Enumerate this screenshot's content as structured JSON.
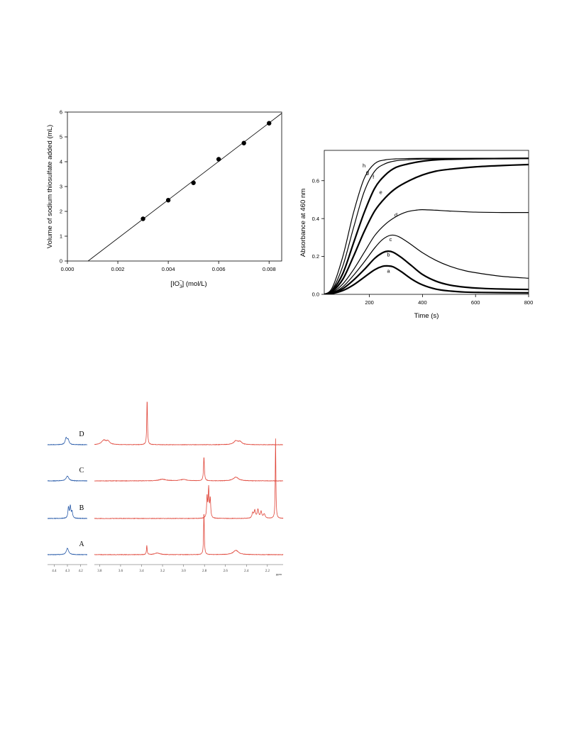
{
  "chart_data": [
    {
      "type": "scatter",
      "xlabel_main": "[IO",
      "xlabel_sub": "3",
      "xlabel_sup": "−",
      "xlabel_tail": "] (mol/L)",
      "ylabel": "Volume of sodium thiosulfate added (mL)",
      "xlim": [
        0,
        0.0085
      ],
      "ylim": [
        0,
        6
      ],
      "xticks": [
        "0.000",
        "0.002",
        "0.004",
        "0.006",
        "0.008"
      ],
      "xtick_values": [
        0,
        0.002,
        0.004,
        0.006,
        0.008
      ],
      "yticks": [
        "0",
        "1",
        "2",
        "3",
        "4",
        "5",
        "6"
      ],
      "ytick_values": [
        0,
        1,
        2,
        3,
        4,
        5,
        6
      ],
      "points": [
        {
          "x": 0.003,
          "y": 1.7
        },
        {
          "x": 0.004,
          "y": 2.45
        },
        {
          "x": 0.005,
          "y": 3.15
        },
        {
          "x": 0.006,
          "y": 4.1
        },
        {
          "x": 0.007,
          "y": 4.75
        },
        {
          "x": 0.008,
          "y": 5.55
        }
      ],
      "fit_line": {
        "x": [
          0.00082,
          0.0085
        ],
        "y": [
          0,
          5.95
        ]
      },
      "grid": false
    },
    {
      "type": "line",
      "xlabel": "Time (s)",
      "ylabel": "Absorbance at 460 nm",
      "xlim": [
        30,
        800
      ],
      "ylim": [
        0,
        0.76
      ],
      "xticks": [
        "200",
        "400",
        "600",
        "800"
      ],
      "xtick_values": [
        200,
        400,
        600,
        800
      ],
      "yticks": [
        "0.0",
        "0.2",
        "0.4",
        "0.6"
      ],
      "ytick_values": [
        0,
        0.2,
        0.4,
        0.6
      ],
      "grid": false,
      "series": [
        {
          "name": "a",
          "width": 2.2,
          "label_at": [
            272,
            0.115
          ],
          "x": [
            30,
            60,
            100,
            140,
            180,
            220,
            250,
            270,
            290,
            320,
            360,
            400,
            450,
            500,
            560,
            620,
            700,
            800
          ],
          "y": [
            0,
            0.004,
            0.02,
            0.05,
            0.09,
            0.13,
            0.148,
            0.15,
            0.145,
            0.12,
            0.08,
            0.05,
            0.028,
            0.018,
            0.012,
            0.01,
            0.009,
            0.008
          ]
        },
        {
          "name": "b",
          "width": 2.2,
          "label_at": [
            272,
            0.2
          ],
          "x": [
            30,
            60,
            100,
            140,
            180,
            220,
            250,
            270,
            290,
            320,
            360,
            400,
            450,
            500,
            560,
            620,
            700,
            800
          ],
          "y": [
            0,
            0.006,
            0.03,
            0.075,
            0.13,
            0.19,
            0.22,
            0.228,
            0.222,
            0.195,
            0.15,
            0.105,
            0.07,
            0.05,
            0.038,
            0.032,
            0.028,
            0.026
          ]
        },
        {
          "name": "c",
          "width": 1.2,
          "label_at": [
            280,
            0.28
          ],
          "x": [
            30,
            60,
            100,
            140,
            180,
            220,
            250,
            280,
            310,
            350,
            400,
            450,
            500,
            560,
            620,
            700,
            800
          ],
          "y": [
            0,
            0.008,
            0.04,
            0.1,
            0.17,
            0.245,
            0.29,
            0.312,
            0.305,
            0.27,
            0.22,
            0.18,
            0.15,
            0.125,
            0.11,
            0.095,
            0.085
          ]
        },
        {
          "name": "d",
          "width": 1.2,
          "label_at": [
            300,
            0.41
          ],
          "x": [
            30,
            60,
            100,
            140,
            180,
            220,
            260,
            300,
            340,
            380,
            400,
            450,
            500,
            600,
            700,
            800
          ],
          "y": [
            0,
            0.01,
            0.055,
            0.13,
            0.22,
            0.31,
            0.37,
            0.41,
            0.435,
            0.445,
            0.447,
            0.444,
            0.44,
            0.434,
            0.432,
            0.432
          ]
        },
        {
          "name": "e",
          "width": 2.2,
          "label_at": [
            243,
            0.53
          ],
          "x": [
            30,
            60,
            100,
            140,
            180,
            220,
            260,
            300,
            350,
            400,
            450,
            500,
            600,
            700,
            800
          ],
          "y": [
            0,
            0.015,
            0.08,
            0.2,
            0.33,
            0.44,
            0.51,
            0.56,
            0.6,
            0.63,
            0.65,
            0.66,
            0.673,
            0.68,
            0.685
          ]
        },
        {
          "name": "f",
          "width": 2.2,
          "label_at": [
            215,
            0.61
          ],
          "x": [
            30,
            60,
            100,
            140,
            180,
            220,
            260,
            300,
            350,
            400,
            450,
            500,
            600,
            700,
            800
          ],
          "y": [
            0,
            0.02,
            0.11,
            0.27,
            0.43,
            0.56,
            0.63,
            0.67,
            0.69,
            0.703,
            0.71,
            0.713,
            0.716,
            0.717,
            0.718
          ]
        },
        {
          "name": "g",
          "width": 1.2,
          "label_at": [
            193,
            0.635
          ],
          "x": [
            30,
            60,
            100,
            140,
            180,
            220,
            260,
            300,
            350,
            400,
            500,
            600,
            700,
            800
          ],
          "y": [
            0,
            0.025,
            0.15,
            0.35,
            0.54,
            0.65,
            0.69,
            0.705,
            0.711,
            0.714,
            0.716,
            0.717,
            0.718,
            0.718
          ]
        },
        {
          "name": "h",
          "width": 1.2,
          "label_at": [
            180,
            0.67
          ],
          "x": [
            30,
            60,
            100,
            140,
            180,
            220,
            260,
            300,
            350,
            400,
            500,
            600,
            700,
            800
          ],
          "y": [
            0,
            0.035,
            0.2,
            0.43,
            0.61,
            0.69,
            0.71,
            0.715,
            0.717,
            0.718,
            0.718,
            0.718,
            0.718,
            0.718
          ]
        }
      ]
    },
    {
      "type": "line",
      "subtype": "nmr-spectra",
      "unit": "ppm",
      "inset_xticks": [
        "4.4",
        "4.3",
        "4.2"
      ],
      "inset_xtick_values": [
        4.4,
        4.3,
        4.2
      ],
      "inset_xlim": [
        4.45,
        4.15
      ],
      "main_xticks": [
        "3.8",
        "3.6",
        "3.4",
        "3.2",
        "3.0",
        "2.8",
        "2.6",
        "2.4",
        "2.2"
      ],
      "main_xtick_values": [
        3.8,
        3.6,
        3.4,
        3.2,
        3.0,
        2.8,
        2.6,
        2.4,
        2.2
      ],
      "main_xlim": [
        3.85,
        2.05
      ],
      "inset_color": "#2a5caa",
      "main_color": "#e0463a",
      "spectra": [
        {
          "name": "D",
          "inset_peaks": [
            {
              "x": 4.31,
              "h": 0.12,
              "w": 0.008
            },
            {
              "x": 4.295,
              "h": 0.09,
              "w": 0.008
            }
          ],
          "main_peaks": [
            {
              "x": 3.76,
              "h": 0.08,
              "w": 0.025
            },
            {
              "x": 3.72,
              "h": 0.06,
              "w": 0.02
            },
            {
              "x": 3.347,
              "h": 0.85,
              "w": 0.004
            },
            {
              "x": 2.5,
              "h": 0.07,
              "w": 0.025
            },
            {
              "x": 2.46,
              "h": 0.05,
              "w": 0.02
            }
          ]
        },
        {
          "name": "C",
          "inset_peaks": [
            {
              "x": 4.3,
              "h": 0.09,
              "w": 0.012
            }
          ],
          "main_peaks": [
            {
              "x": 3.2,
              "h": 0.03,
              "w": 0.04
            },
            {
              "x": 3.0,
              "h": 0.025,
              "w": 0.04
            },
            {
              "x": 2.805,
              "h": 0.45,
              "w": 0.005
            },
            {
              "x": 2.5,
              "h": 0.07,
              "w": 0.03
            }
          ]
        },
        {
          "name": "B",
          "inset_peaks": [
            {
              "x": 4.292,
              "h": 0.2,
              "w": 0.005
            },
            {
              "x": 4.278,
              "h": 0.22,
              "w": 0.005
            },
            {
              "x": 4.265,
              "h": 0.12,
              "w": 0.005
            }
          ],
          "main_peaks": [
            {
              "x": 2.775,
              "h": 0.4,
              "w": 0.005
            },
            {
              "x": 2.76,
              "h": 0.55,
              "w": 0.005
            },
            {
              "x": 2.745,
              "h": 0.35,
              "w": 0.005
            },
            {
              "x": 2.34,
              "h": 0.1,
              "w": 0.008
            },
            {
              "x": 2.32,
              "h": 0.14,
              "w": 0.008
            },
            {
              "x": 2.29,
              "h": 0.16,
              "w": 0.008
            },
            {
              "x": 2.26,
              "h": 0.12,
              "w": 0.008
            },
            {
              "x": 2.23,
              "h": 0.08,
              "w": 0.01
            },
            {
              "x": 2.122,
              "h": 1.5,
              "w": 0.0035
            }
          ]
        },
        {
          "name": "A",
          "inset_peaks": [
            {
              "x": 4.3,
              "h": 0.12,
              "w": 0.01
            }
          ],
          "main_peaks": [
            {
              "x": 3.35,
              "h": 0.17,
              "w": 0.004
            },
            {
              "x": 3.25,
              "h": 0.03,
              "w": 0.03
            },
            {
              "x": 2.805,
              "h": 0.8,
              "w": 0.004
            },
            {
              "x": 2.5,
              "h": 0.08,
              "w": 0.03
            }
          ]
        }
      ]
    }
  ]
}
